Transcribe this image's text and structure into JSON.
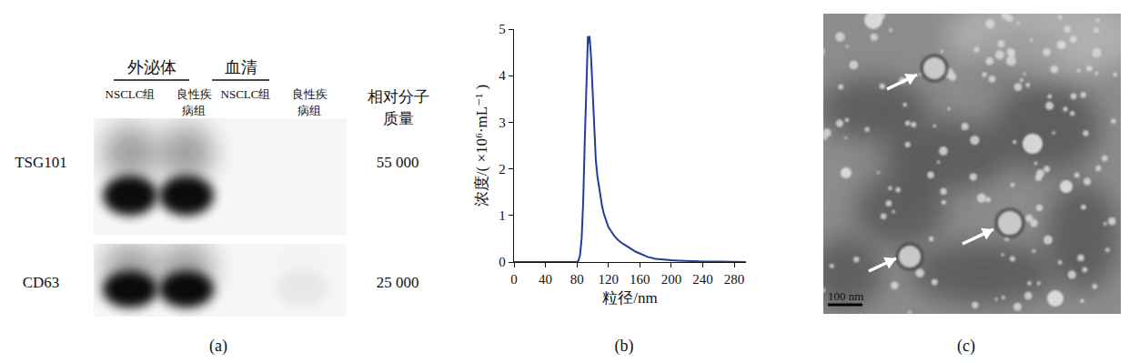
{
  "chart_data": {
    "type": "line",
    "label": "(b)",
    "x_label": "粒径/nm",
    "y_label": "浓度/( ×10⁶·mL⁻¹ )",
    "color": "#1f3d99",
    "x": [
      0,
      40,
      80,
      82,
      84,
      86,
      88,
      90,
      92,
      93,
      94,
      95,
      96,
      98,
      100,
      102,
      104,
      106,
      108,
      110,
      112,
      114,
      116,
      118,
      120,
      124,
      128,
      132,
      136,
      140,
      145,
      150,
      155,
      160,
      165,
      170,
      180,
      190,
      200,
      210,
      220,
      230,
      240,
      260,
      280,
      295
    ],
    "values": [
      0,
      0,
      0,
      0.03,
      0.15,
      0.5,
      1.3,
      2.6,
      3.9,
      4.6,
      4.85,
      4.7,
      4.85,
      4.4,
      3.6,
      2.8,
      2.2,
      1.85,
      1.6,
      1.4,
      1.2,
      1.05,
      0.95,
      0.85,
      0.75,
      0.65,
      0.55,
      0.48,
      0.42,
      0.38,
      0.32,
      0.27,
      0.22,
      0.18,
      0.14,
      0.11,
      0.07,
      0.05,
      0.04,
      0.03,
      0.02,
      0.02,
      0.01,
      0.01,
      0,
      0
    ],
    "xlim": [
      0,
      295
    ],
    "xticks": [
      0,
      40,
      80,
      120,
      160,
      200,
      240,
      280
    ],
    "ylim": [
      0,
      5
    ],
    "yticks": [
      0,
      1,
      2,
      3,
      4,
      5
    ],
    "grid": false
  },
  "western_blot": {
    "label": "(a)",
    "groups": [
      {
        "name": "外泌体",
        "lanes": [
          [
            "NSCLC组"
          ],
          [
            "良性疾",
            "病组"
          ]
        ]
      },
      {
        "name": "血清",
        "lanes": [
          [
            "NSCLC组"
          ],
          [
            "良性疾",
            "病组"
          ]
        ]
      }
    ],
    "mw_header": [
      "相对分子",
      "质量"
    ],
    "blots": [
      {
        "protein": "TSG101",
        "mw": "55 000",
        "band_intensity": [
          1,
          1,
          0,
          0
        ]
      },
      {
        "protein": "CD63",
        "mw": "25 000",
        "band_intensity": [
          1,
          1,
          0,
          0.05
        ]
      }
    ]
  },
  "tem_image": {
    "label": "(c)",
    "scale_bar": "100 nm"
  }
}
